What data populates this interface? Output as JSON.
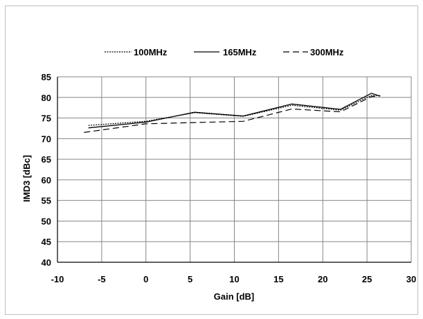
{
  "chart_data": {
    "type": "line",
    "title": "",
    "xlabel": "Gain [dB]",
    "ylabel": "IMD3 [dBc]",
    "xlim": [
      -10,
      30
    ],
    "ylim": [
      40,
      85
    ],
    "xticks": [
      -10,
      -5,
      0,
      5,
      10,
      15,
      20,
      25,
      30
    ],
    "yticks": [
      40,
      45,
      50,
      55,
      60,
      65,
      70,
      75,
      80,
      85
    ],
    "grid": true,
    "legend_position": "top",
    "series": [
      {
        "name": "100MHz",
        "style": "dotted",
        "color": "#000000",
        "x": [
          -6.5,
          0,
          5.5,
          11,
          16.5,
          22,
          25.5,
          26.5
        ],
        "y": [
          73.2,
          74.2,
          76.3,
          75.4,
          78.1,
          76.9,
          80.5,
          80.4
        ]
      },
      {
        "name": "165MHz",
        "style": "solid",
        "color": "#000000",
        "x": [
          -6.5,
          0,
          5.5,
          11,
          16.5,
          22,
          25.5,
          26.5
        ],
        "y": [
          72.6,
          74.0,
          76.4,
          75.5,
          78.4,
          77.1,
          81.0,
          80.3
        ]
      },
      {
        "name": "300MHz",
        "style": "dashed",
        "color": "#000000",
        "x": [
          -7,
          0,
          5.5,
          11,
          16.5,
          22,
          25.5,
          26.5
        ],
        "y": [
          71.5,
          73.6,
          73.9,
          74.2,
          77.2,
          76.5,
          80.2,
          80.4
        ]
      }
    ]
  }
}
